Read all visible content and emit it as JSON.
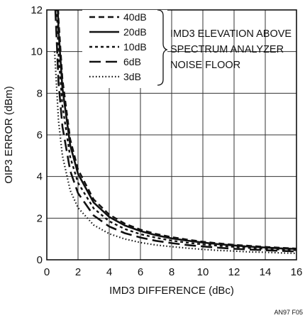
{
  "chart_data": {
    "type": "line",
    "title": "",
    "xlabel": "IMD3 DIFFERENCE (dBc)",
    "ylabel": "OIP3 ERROR (dBm)",
    "xlim": [
      0,
      16
    ],
    "ylim": [
      0,
      12
    ],
    "xticks": [
      0,
      2,
      4,
      6,
      8,
      10,
      12,
      14,
      16
    ],
    "yticks": [
      0,
      2,
      4,
      6,
      8,
      10,
      12
    ],
    "grid": true,
    "legend_position": "top",
    "legend_annotation": [
      "IMD3 ELEVATION ABOVE",
      "SPECTRUM ANALYZER",
      "NOISE FLOOR"
    ],
    "figure_id": "AN97 F05",
    "x": [
      0.5,
      0.75,
      1,
      1.5,
      2,
      3,
      4,
      5,
      6,
      7,
      8,
      9,
      10,
      11,
      12,
      13,
      14,
      15,
      16
    ],
    "series": [
      {
        "name": "40dB",
        "style": "dashed",
        "values": [
          17.37,
          11.58,
          8.69,
          5.79,
          4.34,
          2.9,
          2.17,
          1.74,
          1.45,
          1.24,
          1.09,
          0.97,
          0.87,
          0.79,
          0.72,
          0.67,
          0.62,
          0.58,
          0.54
        ]
      },
      {
        "name": "20dB",
        "style": "solid",
        "values": [
          16.5,
          11.01,
          8.25,
          5.5,
          4.13,
          2.75,
          2.06,
          1.65,
          1.38,
          1.18,
          1.03,
          0.92,
          0.83,
          0.75,
          0.69,
          0.63,
          0.59,
          0.55,
          0.52
        ]
      },
      {
        "name": "10dB",
        "style": "short-dashed",
        "values": [
          14.8,
          9.86,
          7.4,
          4.93,
          3.7,
          2.47,
          1.85,
          1.48,
          1.23,
          1.06,
          0.92,
          0.82,
          0.74,
          0.67,
          0.62,
          0.57,
          0.53,
          0.49,
          0.46
        ]
      },
      {
        "name": "6dB",
        "style": "long-dashed",
        "values": [
          12.8,
          8.53,
          6.4,
          4.27,
          3.2,
          2.13,
          1.6,
          1.28,
          1.07,
          0.91,
          0.8,
          0.71,
          0.64,
          0.58,
          0.53,
          0.49,
          0.46,
          0.43,
          0.4
        ]
      },
      {
        "name": "3dB",
        "style": "dotted",
        "values": [
          10.0,
          6.67,
          5.0,
          3.33,
          2.5,
          1.67,
          1.25,
          1.0,
          0.83,
          0.71,
          0.63,
          0.56,
          0.5,
          0.45,
          0.42,
          0.38,
          0.36,
          0.33,
          0.31
        ]
      }
    ]
  }
}
